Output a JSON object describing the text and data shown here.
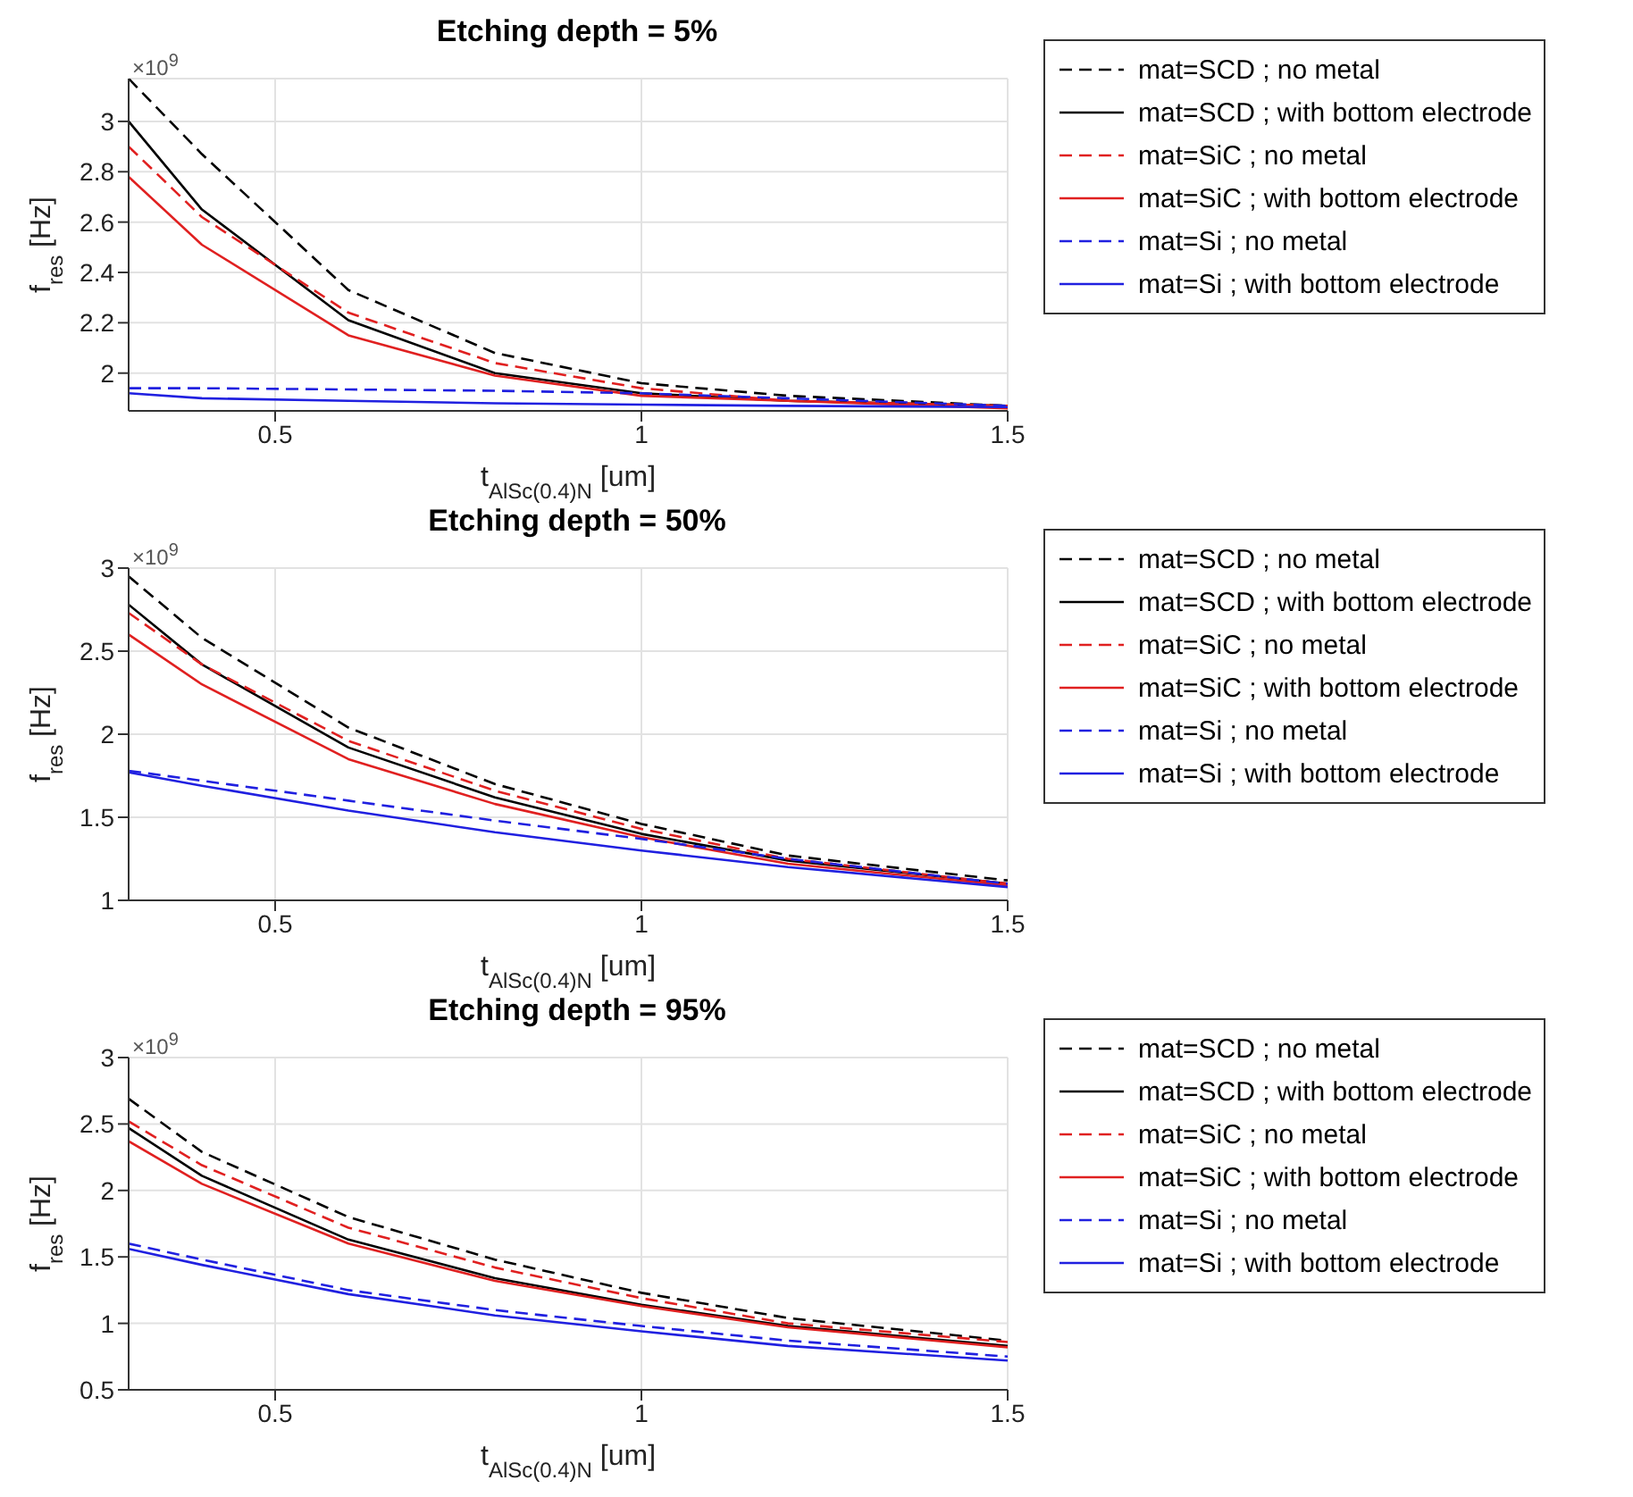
{
  "chart_data": [
    {
      "type": "line",
      "title": "Etching depth = 5%",
      "xlabel": "t$_{AlSc(0.4)N}$ [um]",
      "ylabel": "f$_{res}$ [Hz]",
      "annotations": [
        "×10$^{9}$"
      ],
      "x": [
        0.3,
        0.4,
        0.6,
        0.8,
        1.0,
        1.2,
        1.5
      ],
      "xlim": [
        0.3,
        1.5
      ],
      "xticks": [
        0.5,
        1,
        1.5
      ],
      "ylim": [
        1.85,
        3.17
      ],
      "yticks": [
        2,
        2.2,
        2.4,
        2.6,
        2.8,
        3
      ],
      "grid": true,
      "legend": "right",
      "series": [
        {
          "name": "mat=SCD ; no metal",
          "color": "#000000",
          "line_style": "dashed",
          "values": [
            3.17,
            2.87,
            2.33,
            2.08,
            1.96,
            1.91,
            1.87
          ]
        },
        {
          "name": "mat=SCD ; with bottom electrode",
          "color": "#000000",
          "line_style": "solid",
          "values": [
            3.0,
            2.65,
            2.21,
            2.0,
            1.92,
            1.89,
            1.87
          ]
        },
        {
          "name": "mat=SiC ; no metal",
          "color": "#e02020",
          "line_style": "dashed",
          "values": [
            2.9,
            2.62,
            2.24,
            2.04,
            1.94,
            1.89,
            1.87
          ]
        },
        {
          "name": "mat=SiC ; with bottom electrode",
          "color": "#e02020",
          "line_style": "solid",
          "values": [
            2.78,
            2.51,
            2.15,
            1.99,
            1.91,
            1.89,
            1.86
          ]
        },
        {
          "name": "mat=Si ; no metal",
          "color": "#2020e0",
          "line_style": "dashed",
          "values": [
            1.94,
            1.94,
            1.935,
            1.93,
            1.92,
            1.9,
            1.87
          ]
        },
        {
          "name": "mat=Si ; with bottom electrode",
          "color": "#2020e0",
          "line_style": "solid",
          "values": [
            1.92,
            1.9,
            1.89,
            1.88,
            1.875,
            1.87,
            1.865
          ]
        }
      ]
    },
    {
      "type": "line",
      "title": "Etching depth = 50%",
      "xlabel": "t$_{AlSc(0.4)N}$ [um]",
      "ylabel": "f$_{res}$ [Hz]",
      "annotations": [
        "×10$^{9}$"
      ],
      "x": [
        0.3,
        0.4,
        0.6,
        0.8,
        1.0,
        1.2,
        1.5
      ],
      "xlim": [
        0.3,
        1.5
      ],
      "xticks": [
        0.5,
        1,
        1.5
      ],
      "ylim": [
        1,
        3
      ],
      "yticks": [
        1,
        1.5,
        2,
        2.5,
        3
      ],
      "grid": true,
      "legend": "right",
      "series": [
        {
          "name": "mat=SCD ; no metal",
          "color": "#000000",
          "line_style": "dashed",
          "values": [
            2.95,
            2.58,
            2.04,
            1.7,
            1.46,
            1.27,
            1.12
          ]
        },
        {
          "name": "mat=SCD ; with bottom electrode",
          "color": "#000000",
          "line_style": "solid",
          "values": [
            2.78,
            2.42,
            1.92,
            1.62,
            1.4,
            1.24,
            1.1
          ]
        },
        {
          "name": "mat=SiC ; no metal",
          "color": "#e02020",
          "line_style": "dashed",
          "values": [
            2.73,
            2.42,
            1.96,
            1.66,
            1.43,
            1.25,
            1.1
          ]
        },
        {
          "name": "mat=SiC ; with bottom electrode",
          "color": "#e02020",
          "line_style": "solid",
          "values": [
            2.6,
            2.3,
            1.85,
            1.58,
            1.38,
            1.22,
            1.09
          ]
        },
        {
          "name": "mat=Si ; no metal",
          "color": "#2020e0",
          "line_style": "dashed",
          "values": [
            1.78,
            1.72,
            1.6,
            1.48,
            1.37,
            1.25,
            1.1
          ]
        },
        {
          "name": "mat=Si ; with bottom electrode",
          "color": "#2020e0",
          "line_style": "solid",
          "values": [
            1.77,
            1.69,
            1.54,
            1.41,
            1.3,
            1.2,
            1.08
          ]
        }
      ]
    },
    {
      "type": "line",
      "title": "Etching depth = 95%",
      "xlabel": "t$_{AlSc(0.4)N}$ [um]",
      "ylabel": "f$_{res}$ [Hz]",
      "annotations": [
        "×10$^{9}$"
      ],
      "x": [
        0.3,
        0.4,
        0.6,
        0.8,
        1.0,
        1.2,
        1.5
      ],
      "xlim": [
        0.3,
        1.5
      ],
      "xticks": [
        0.5,
        1,
        1.5
      ],
      "ylim": [
        0.5,
        3
      ],
      "yticks": [
        0.5,
        1,
        1.5,
        2,
        2.5,
        3
      ],
      "grid": true,
      "legend": "right",
      "series": [
        {
          "name": "mat=SCD ; no metal",
          "color": "#000000",
          "line_style": "dashed",
          "values": [
            2.69,
            2.29,
            1.8,
            1.48,
            1.23,
            1.04,
            0.87
          ]
        },
        {
          "name": "mat=SCD ; with bottom electrode",
          "color": "#000000",
          "line_style": "solid",
          "values": [
            2.47,
            2.11,
            1.63,
            1.34,
            1.14,
            0.98,
            0.83
          ]
        },
        {
          "name": "mat=SiC ; no metal",
          "color": "#e02020",
          "line_style": "dashed",
          "values": [
            2.52,
            2.19,
            1.72,
            1.42,
            1.19,
            1.0,
            0.86
          ]
        },
        {
          "name": "mat=SiC ; with bottom electrode",
          "color": "#e02020",
          "line_style": "solid",
          "values": [
            2.37,
            2.05,
            1.6,
            1.32,
            1.13,
            0.97,
            0.82
          ]
        },
        {
          "name": "mat=Si ; no metal",
          "color": "#2020e0",
          "line_style": "dashed",
          "values": [
            1.6,
            1.48,
            1.25,
            1.1,
            0.98,
            0.87,
            0.75
          ]
        },
        {
          "name": "mat=Si ; with bottom electrode",
          "color": "#2020e0",
          "line_style": "solid",
          "values": [
            1.56,
            1.44,
            1.22,
            1.06,
            0.94,
            0.83,
            0.72
          ]
        }
      ]
    }
  ]
}
